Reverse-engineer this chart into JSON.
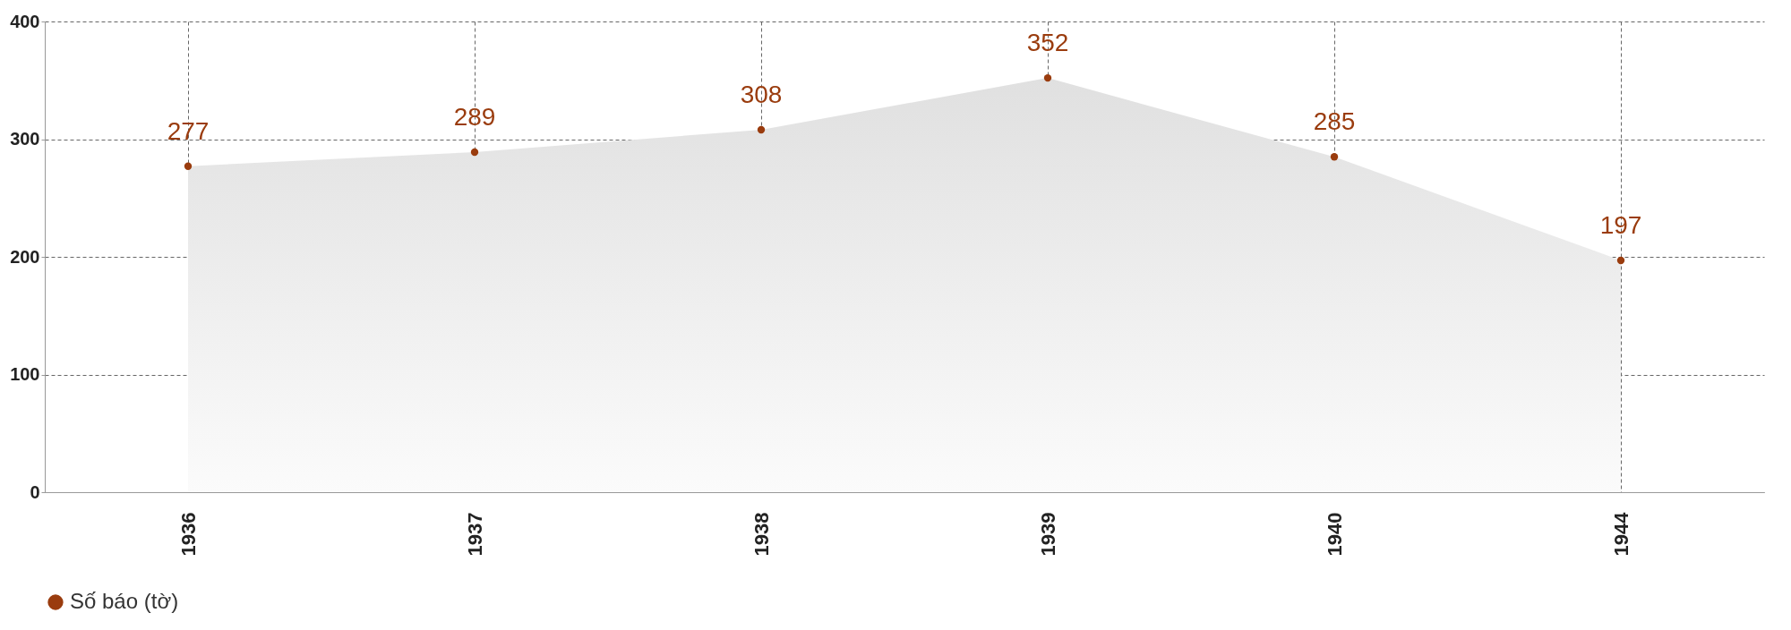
{
  "chart_data": {
    "type": "area",
    "categories": [
      "1936",
      "1937",
      "1938",
      "1939",
      "1940",
      "1944"
    ],
    "series": [
      {
        "name": "Số báo (tờ)",
        "color": "#9a3c0e",
        "values": [
          277,
          289,
          308,
          352,
          285,
          197
        ]
      }
    ],
    "ylim": [
      0,
      400
    ],
    "yticks": [
      0,
      100,
      200,
      300,
      400
    ],
    "grid": true,
    "legend": "bottom",
    "marker": "circle",
    "data_labels": true
  }
}
